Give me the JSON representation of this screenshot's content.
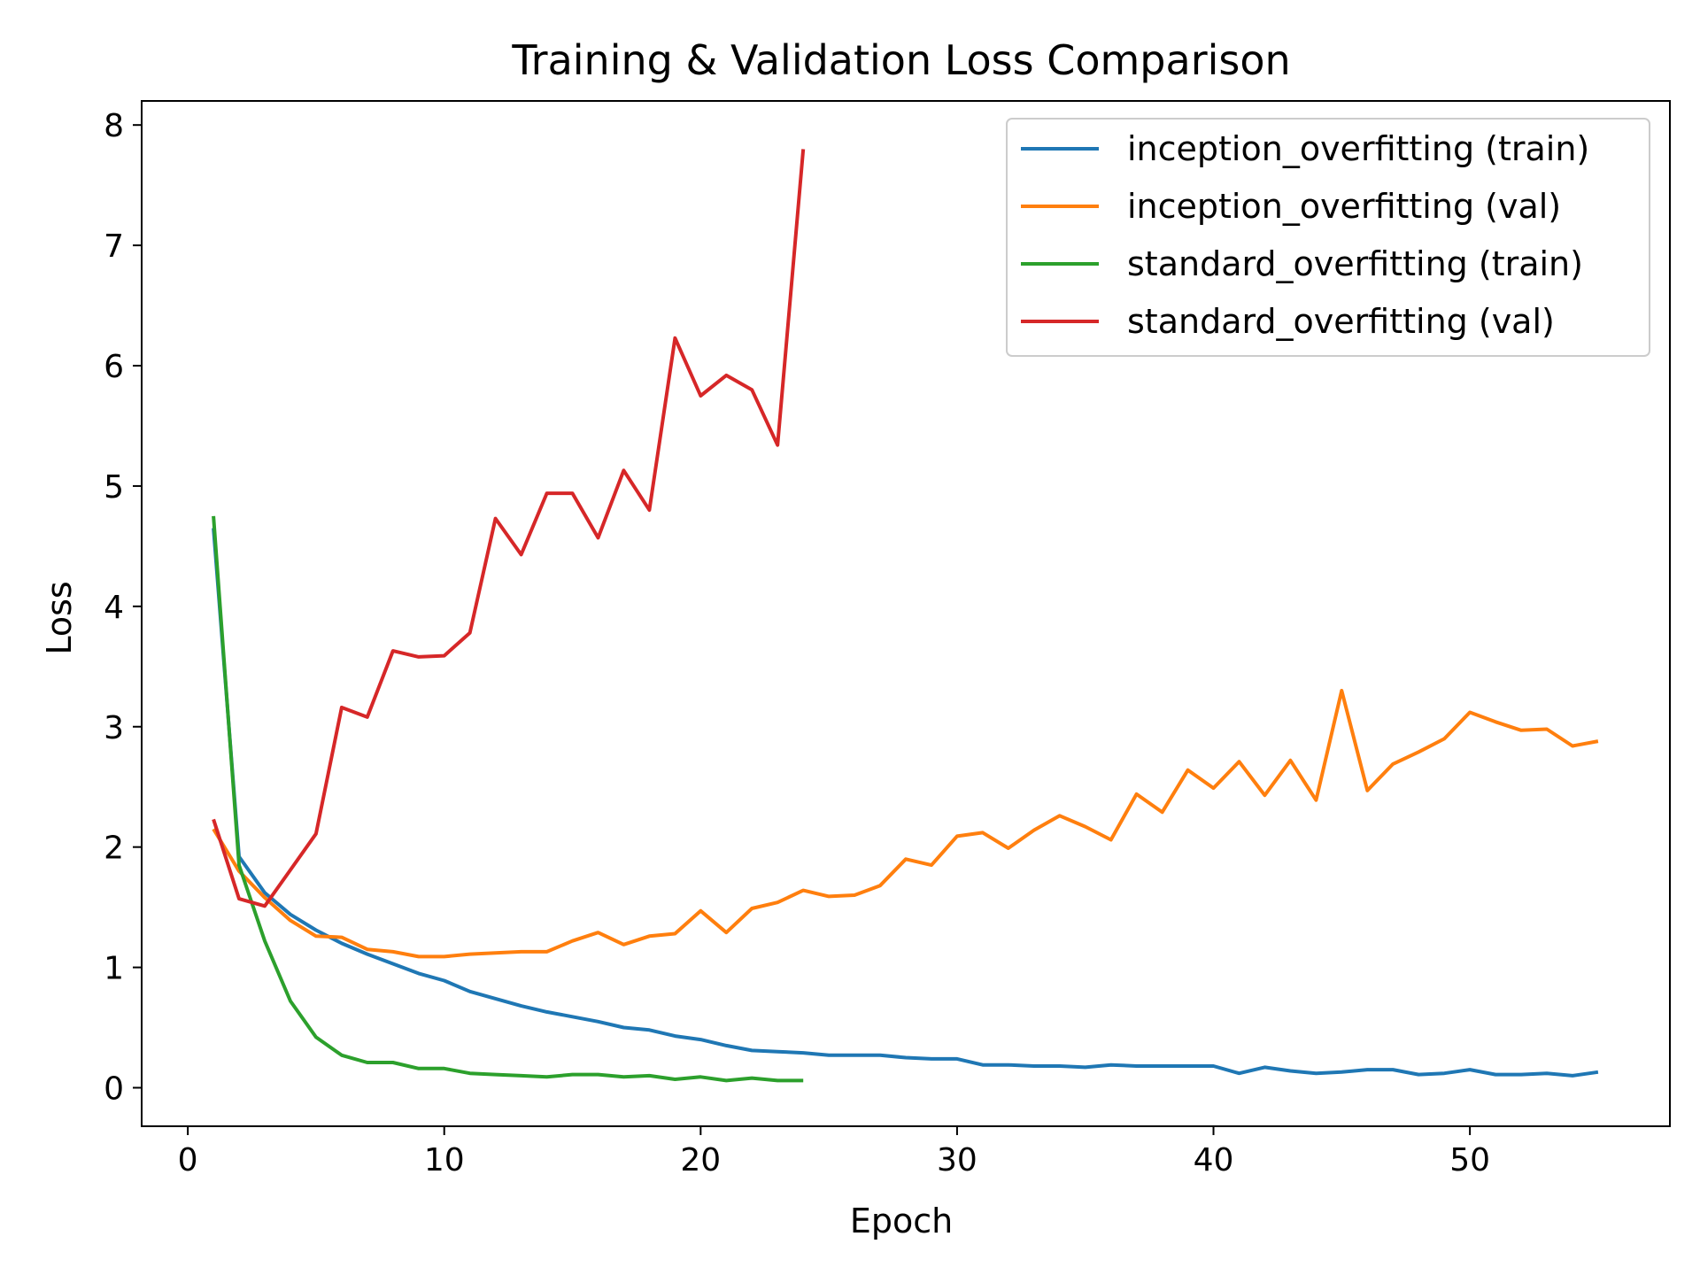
{
  "chart_data": {
    "type": "line",
    "title": "Training & Validation Loss Comparison",
    "xlabel": "Epoch",
    "ylabel": "Loss",
    "xlim": [
      -1.8,
      57.8
    ],
    "ylim": [
      -0.32,
      8.2
    ],
    "xticks": [
      0,
      10,
      20,
      30,
      40,
      50
    ],
    "yticks": [
      0,
      1,
      2,
      3,
      4,
      5,
      6,
      7,
      8
    ],
    "grid": false,
    "legend_position": "top-right",
    "series": [
      {
        "name": "inception_overfitting (train)",
        "color": "#1f77b4",
        "x": [
          1,
          2,
          3,
          4,
          5,
          6,
          7,
          8,
          9,
          10,
          11,
          12,
          13,
          14,
          15,
          16,
          17,
          18,
          19,
          20,
          21,
          22,
          23,
          24,
          25,
          26,
          27,
          28,
          29,
          30,
          31,
          32,
          33,
          34,
          35,
          36,
          37,
          38,
          39,
          40,
          41,
          42,
          43,
          44,
          45,
          46,
          47,
          48,
          49,
          50,
          51,
          52,
          53,
          54,
          55
        ],
        "y": [
          4.65,
          1.92,
          1.62,
          1.44,
          1.31,
          1.2,
          1.11,
          1.03,
          0.95,
          0.89,
          0.8,
          0.74,
          0.68,
          0.63,
          0.59,
          0.55,
          0.5,
          0.48,
          0.43,
          0.4,
          0.35,
          0.31,
          0.3,
          0.29,
          0.27,
          0.27,
          0.27,
          0.25,
          0.24,
          0.24,
          0.19,
          0.19,
          0.18,
          0.18,
          0.17,
          0.19,
          0.18,
          0.18,
          0.18,
          0.18,
          0.12,
          0.17,
          0.14,
          0.12,
          0.13,
          0.15,
          0.15,
          0.11,
          0.12,
          0.15,
          0.11,
          0.11,
          0.12,
          0.1,
          0.13
        ]
      },
      {
        "name": "inception_overfitting (val)",
        "color": "#ff7f0e",
        "x": [
          1,
          2,
          3,
          4,
          5,
          6,
          7,
          8,
          9,
          10,
          11,
          12,
          13,
          14,
          15,
          16,
          17,
          18,
          19,
          20,
          21,
          22,
          23,
          24,
          25,
          26,
          27,
          28,
          29,
          30,
          31,
          32,
          33,
          34,
          35,
          36,
          37,
          38,
          39,
          40,
          41,
          42,
          43,
          44,
          45,
          46,
          47,
          48,
          49,
          50,
          51,
          52,
          53,
          54,
          55
        ],
        "y": [
          2.15,
          1.8,
          1.58,
          1.39,
          1.26,
          1.25,
          1.15,
          1.13,
          1.09,
          1.09,
          1.11,
          1.12,
          1.13,
          1.13,
          1.22,
          1.29,
          1.19,
          1.26,
          1.28,
          1.47,
          1.29,
          1.49,
          1.54,
          1.64,
          1.59,
          1.6,
          1.68,
          1.9,
          1.85,
          2.09,
          2.12,
          1.99,
          2.14,
          2.26,
          2.17,
          2.06,
          2.44,
          2.29,
          2.64,
          2.49,
          2.71,
          2.43,
          2.72,
          2.39,
          3.3,
          2.47,
          2.69,
          2.79,
          2.9,
          3.12,
          3.04,
          2.97,
          2.98,
          2.84,
          2.88
        ]
      },
      {
        "name": "standard_overfitting (train)",
        "color": "#2ca02c",
        "x": [
          1,
          2,
          3,
          4,
          5,
          6,
          7,
          8,
          9,
          10,
          11,
          12,
          13,
          14,
          15,
          16,
          17,
          18,
          19,
          20,
          21,
          22,
          23,
          24
        ],
        "y": [
          4.75,
          1.85,
          1.22,
          0.72,
          0.42,
          0.27,
          0.21,
          0.21,
          0.16,
          0.16,
          0.12,
          0.11,
          0.1,
          0.09,
          0.11,
          0.11,
          0.09,
          0.1,
          0.07,
          0.09,
          0.06,
          0.08,
          0.06,
          0.06
        ]
      },
      {
        "name": "standard_overfitting (val)",
        "color": "#d62728",
        "x": [
          1,
          2,
          3,
          4,
          5,
          6,
          7,
          8,
          9,
          10,
          11,
          12,
          13,
          14,
          15,
          16,
          17,
          18,
          19,
          20,
          21,
          22,
          23,
          24
        ],
        "y": [
          2.23,
          1.57,
          1.51,
          1.81,
          2.11,
          3.16,
          3.08,
          3.63,
          3.58,
          3.59,
          3.78,
          4.73,
          4.43,
          4.94,
          4.94,
          4.57,
          5.13,
          4.8,
          6.23,
          5.75,
          5.92,
          5.8,
          5.34,
          7.8
        ]
      }
    ]
  }
}
